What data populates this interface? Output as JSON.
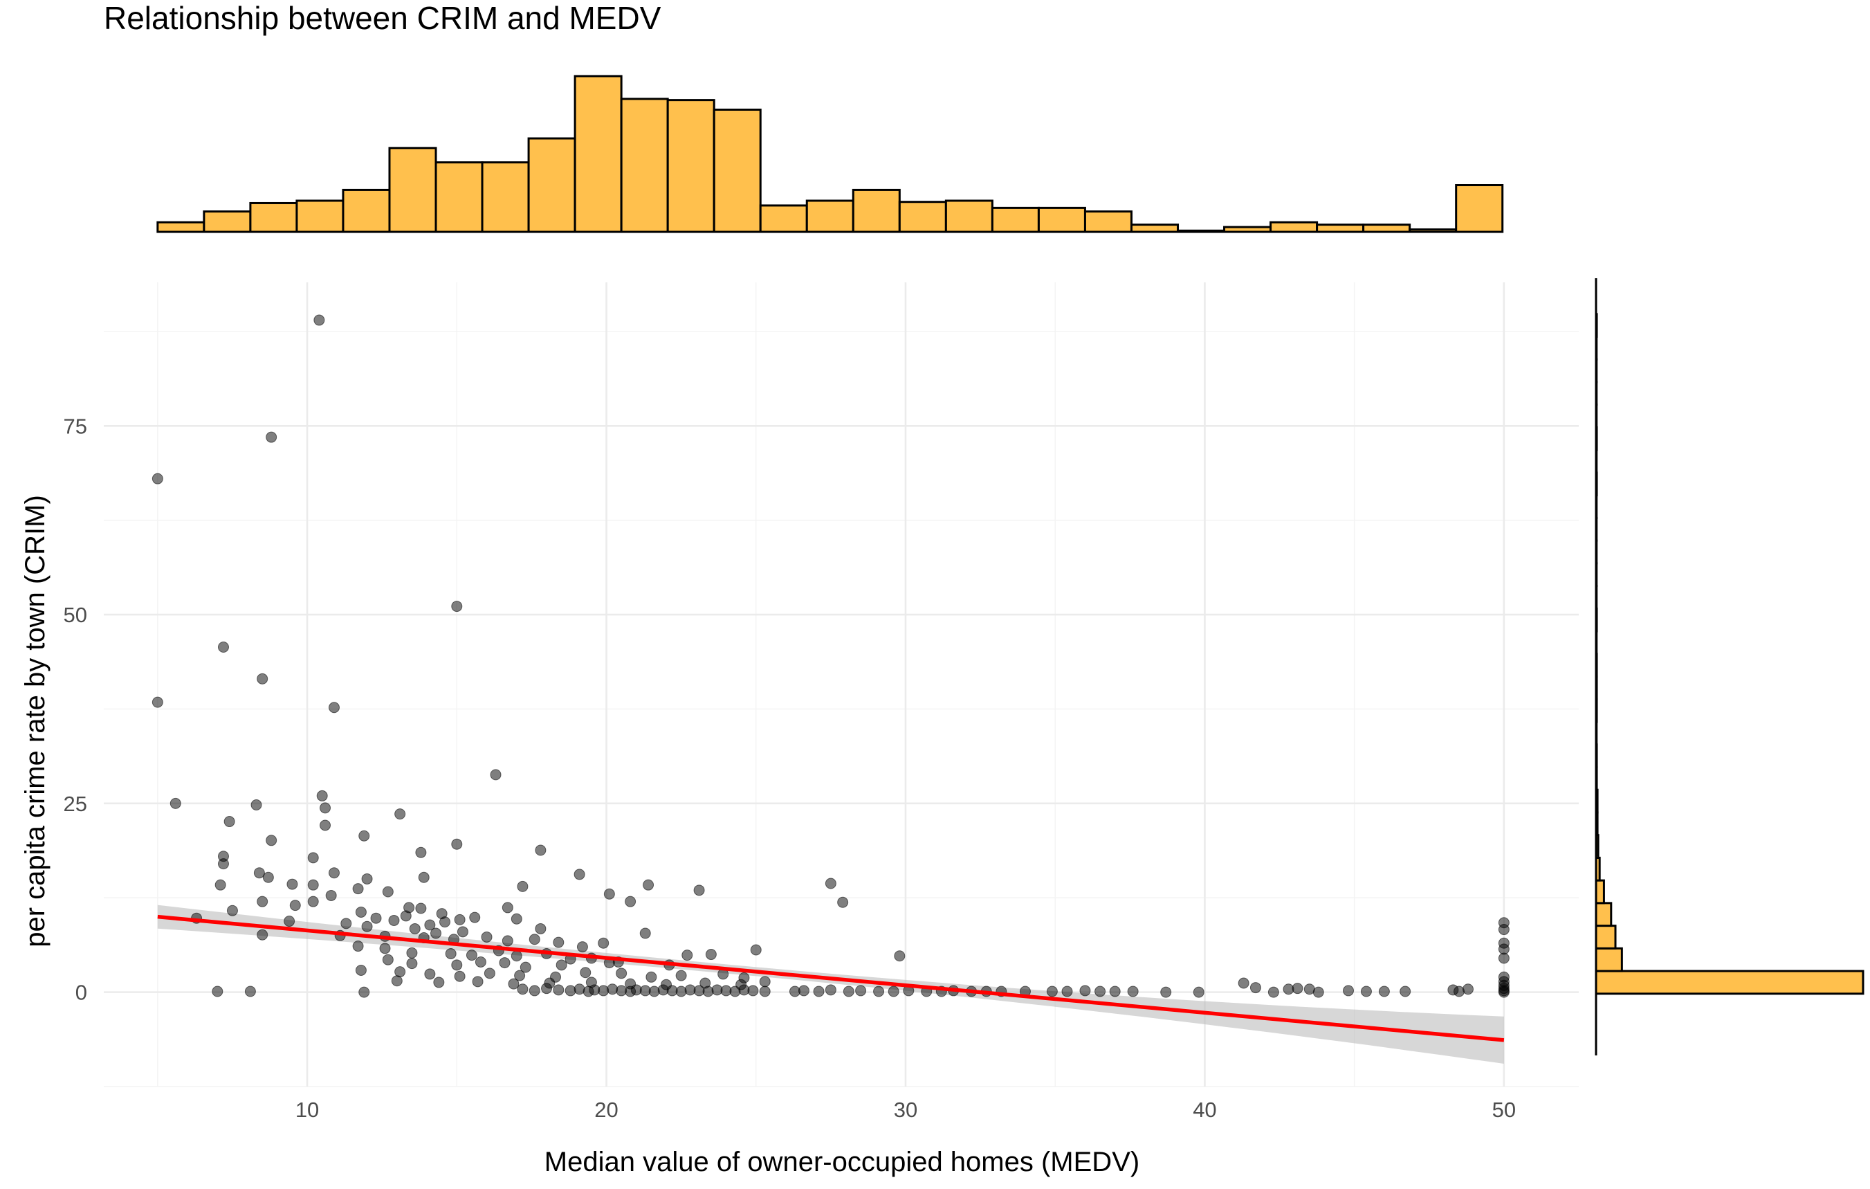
{
  "chart_data": {
    "type": "scatter",
    "title": "Relationship between CRIM and MEDV",
    "xlabel": "Median value of owner-occupied homes (MEDV)",
    "ylabel": "per capita crime rate by town (CRIM)",
    "x_ticks": [
      10,
      20,
      30,
      40,
      50
    ],
    "y_ticks": [
      0,
      25,
      50,
      75
    ],
    "xlim": [
      3.2,
      52.5
    ],
    "ylim": [
      -12.5,
      94
    ],
    "grid": true,
    "colors": {
      "points": "#000000",
      "fit_line": "#ff0000",
      "band": "#bdbdbd",
      "histogram": "#ffc04d"
    },
    "regression": {
      "intercept": 11.8,
      "slope": -0.363,
      "x_range": [
        5,
        50
      ],
      "band_half_width": [
        1.5,
        2.3
      ]
    },
    "points": [
      [
        5,
        68.0
      ],
      [
        5,
        38.4
      ],
      [
        8.8,
        73.5
      ],
      [
        10.4,
        89.0
      ],
      [
        15,
        51.1
      ],
      [
        7.2,
        45.7
      ],
      [
        8.5,
        41.5
      ],
      [
        10.9,
        37.7
      ],
      [
        5.6,
        25.0
      ],
      [
        10.5,
        26.0
      ],
      [
        16.3,
        28.8
      ],
      [
        8.3,
        24.8
      ],
      [
        10.6,
        24.4
      ],
      [
        7.4,
        22.6
      ],
      [
        10.6,
        22.1
      ],
      [
        8.8,
        20.1
      ],
      [
        11.9,
        20.7
      ],
      [
        13.1,
        23.6
      ],
      [
        15,
        19.6
      ],
      [
        13.8,
        18.5
      ],
      [
        17.8,
        18.8
      ],
      [
        7.2,
        18.0
      ],
      [
        7.2,
        17.0
      ],
      [
        10.2,
        17.8
      ],
      [
        8.4,
        15.8
      ],
      [
        8.7,
        15.2
      ],
      [
        10.9,
        15.8
      ],
      [
        12,
        15.0
      ],
      [
        13.9,
        15.2
      ],
      [
        19.1,
        15.6
      ],
      [
        7.1,
        14.2
      ],
      [
        9.5,
        14.3
      ],
      [
        10.2,
        14.2
      ],
      [
        11.7,
        13.7
      ],
      [
        17.2,
        14.0
      ],
      [
        21.4,
        14.2
      ],
      [
        23.1,
        13.5
      ],
      [
        27.5,
        14.4
      ],
      [
        10.2,
        12.0
      ],
      [
        10.8,
        12.8
      ],
      [
        12.7,
        13.3
      ],
      [
        20.1,
        13.0
      ],
      [
        20.8,
        12.0
      ],
      [
        27.9,
        11.9
      ],
      [
        7.5,
        10.8
      ],
      [
        8.5,
        12.0
      ],
      [
        9.6,
        11.5
      ],
      [
        11.8,
        10.6
      ],
      [
        13.4,
        11.2
      ],
      [
        13.8,
        11.1
      ],
      [
        14.5,
        10.4
      ],
      [
        16.7,
        11.2
      ],
      [
        6.3,
        9.8
      ],
      [
        9.4,
        9.4
      ],
      [
        11.3,
        9.1
      ],
      [
        12.3,
        9.8
      ],
      [
        12.9,
        9.5
      ],
      [
        13.3,
        10.1
      ],
      [
        14.1,
        8.9
      ],
      [
        14.6,
        9.3
      ],
      [
        15.1,
        9.6
      ],
      [
        15.6,
        9.9
      ],
      [
        17.0,
        9.7
      ],
      [
        17.8,
        8.4
      ],
      [
        12.0,
        8.7
      ],
      [
        13.6,
        8.4
      ],
      [
        14.3,
        7.8
      ],
      [
        15.2,
        8.0
      ],
      [
        8.5,
        7.6
      ],
      [
        11.1,
        7.5
      ],
      [
        12.6,
        7.4
      ],
      [
        13.9,
        7.2
      ],
      [
        14.9,
        7.0
      ],
      [
        16.0,
        7.3
      ],
      [
        16.7,
        6.8
      ],
      [
        17.6,
        7.0
      ],
      [
        18.4,
        6.6
      ],
      [
        19.2,
        6.0
      ],
      [
        19.9,
        6.5
      ],
      [
        21.3,
        7.8
      ],
      [
        11.7,
        6.1
      ],
      [
        12.6,
        5.8
      ],
      [
        13.5,
        5.2
      ],
      [
        14.8,
        5.1
      ],
      [
        15.5,
        4.9
      ],
      [
        16.4,
        5.5
      ],
      [
        17.0,
        4.8
      ],
      [
        18.0,
        5.1
      ],
      [
        18.8,
        4.4
      ],
      [
        19.5,
        4.5
      ],
      [
        20.4,
        4.0
      ],
      [
        22.7,
        4.9
      ],
      [
        23.5,
        5.0
      ],
      [
        25.0,
        5.6
      ],
      [
        29.8,
        4.8
      ],
      [
        12.7,
        4.3
      ],
      [
        13.5,
        3.8
      ],
      [
        15.0,
        3.6
      ],
      [
        15.8,
        4.0
      ],
      [
        16.6,
        3.9
      ],
      [
        17.3,
        3.3
      ],
      [
        18.5,
        3.6
      ],
      [
        20.1,
        3.9
      ],
      [
        22.1,
        3.6
      ],
      [
        11.8,
        2.9
      ],
      [
        13.1,
        2.7
      ],
      [
        14.1,
        2.4
      ],
      [
        15.1,
        2.1
      ],
      [
        16.1,
        2.5
      ],
      [
        17.1,
        2.2
      ],
      [
        18.3,
        2.0
      ],
      [
        19.3,
        2.6
      ],
      [
        20.5,
        2.5
      ],
      [
        21.5,
        2.0
      ],
      [
        22.5,
        2.2
      ],
      [
        23.9,
        2.4
      ],
      [
        24.6,
        1.9
      ],
      [
        13.0,
        1.5
      ],
      [
        14.4,
        1.3
      ],
      [
        15.7,
        1.4
      ],
      [
        16.9,
        1.1
      ],
      [
        18.1,
        1.2
      ],
      [
        19.5,
        1.3
      ],
      [
        20.8,
        1.1
      ],
      [
        22.0,
        1.0
      ],
      [
        23.3,
        1.2
      ],
      [
        24.5,
        1.0
      ],
      [
        25.3,
        1.4
      ],
      [
        7.0,
        0.1
      ],
      [
        8.1,
        0.1
      ],
      [
        11.9,
        0.0
      ],
      [
        17.2,
        0.4
      ],
      [
        17.6,
        0.2
      ],
      [
        18.0,
        0.5
      ],
      [
        18.4,
        0.3
      ],
      [
        18.8,
        0.2
      ],
      [
        19.1,
        0.4
      ],
      [
        19.4,
        0.1
      ],
      [
        19.6,
        0.3
      ],
      [
        19.9,
        0.2
      ],
      [
        20.2,
        0.4
      ],
      [
        20.5,
        0.2
      ],
      [
        20.8,
        0.1
      ],
      [
        21.0,
        0.3
      ],
      [
        21.3,
        0.2
      ],
      [
        21.6,
        0.1
      ],
      [
        21.9,
        0.3
      ],
      [
        22.2,
        0.2
      ],
      [
        22.5,
        0.1
      ],
      [
        22.8,
        0.3
      ],
      [
        23.1,
        0.2
      ],
      [
        23.4,
        0.1
      ],
      [
        23.7,
        0.3
      ],
      [
        24.0,
        0.2
      ],
      [
        24.3,
        0.1
      ],
      [
        24.6,
        0.3
      ],
      [
        24.9,
        0.2
      ],
      [
        25.3,
        0.1
      ],
      [
        26.3,
        0.1
      ],
      [
        26.6,
        0.2
      ],
      [
        27.1,
        0.1
      ],
      [
        27.5,
        0.3
      ],
      [
        28.1,
        0.1
      ],
      [
        28.5,
        0.2
      ],
      [
        29.1,
        0.1
      ],
      [
        29.6,
        0.1
      ],
      [
        30.1,
        0.2
      ],
      [
        30.7,
        0.1
      ],
      [
        31.2,
        0.1
      ],
      [
        31.6,
        0.2
      ],
      [
        32.2,
        0.1
      ],
      [
        32.7,
        0.1
      ],
      [
        33.2,
        0.1
      ],
      [
        34.0,
        0.1
      ],
      [
        34.9,
        0.1
      ],
      [
        35.4,
        0.1
      ],
      [
        36.0,
        0.2
      ],
      [
        36.5,
        0.1
      ],
      [
        37.0,
        0.1
      ],
      [
        37.6,
        0.1
      ],
      [
        38.7,
        0.0
      ],
      [
        39.8,
        0.0
      ],
      [
        41.3,
        1.2
      ],
      [
        41.7,
        0.6
      ],
      [
        42.3,
        0.0
      ],
      [
        42.8,
        0.4
      ],
      [
        43.1,
        0.5
      ],
      [
        43.5,
        0.4
      ],
      [
        43.8,
        0.0
      ],
      [
        44.8,
        0.2
      ],
      [
        45.4,
        0.1
      ],
      [
        46.0,
        0.1
      ],
      [
        46.7,
        0.1
      ],
      [
        48.3,
        0.3
      ],
      [
        48.5,
        0.1
      ],
      [
        48.8,
        0.4
      ],
      [
        50,
        9.2
      ],
      [
        50,
        8.3
      ],
      [
        50,
        6.5
      ],
      [
        50,
        5.7
      ],
      [
        50,
        4.5
      ],
      [
        50,
        2.0
      ],
      [
        50,
        1.4
      ],
      [
        50,
        0.9
      ],
      [
        50,
        0.5
      ],
      [
        50,
        0.2
      ],
      [
        50,
        0.0
      ]
    ],
    "marginal_x": {
      "bin_width": 1.55,
      "x_start": 5,
      "counts": [
        8,
        17,
        24,
        26,
        35,
        70,
        58,
        58,
        78,
        130,
        111,
        110,
        102,
        22,
        26,
        35,
        25,
        26,
        20,
        20,
        17,
        6,
        1,
        4,
        8,
        6,
        6,
        2,
        39
      ]
    },
    "marginal_y": {
      "bin_width": 3.0,
      "y_start": -0.2,
      "counts": [
        372,
        36,
        27,
        21,
        11,
        5,
        3,
        2,
        2,
        1,
        1,
        0,
        1,
        1,
        1,
        0,
        1,
        0,
        0,
        0,
        0,
        0,
        1,
        0,
        1,
        0,
        0,
        0,
        0,
        1
      ]
    }
  }
}
